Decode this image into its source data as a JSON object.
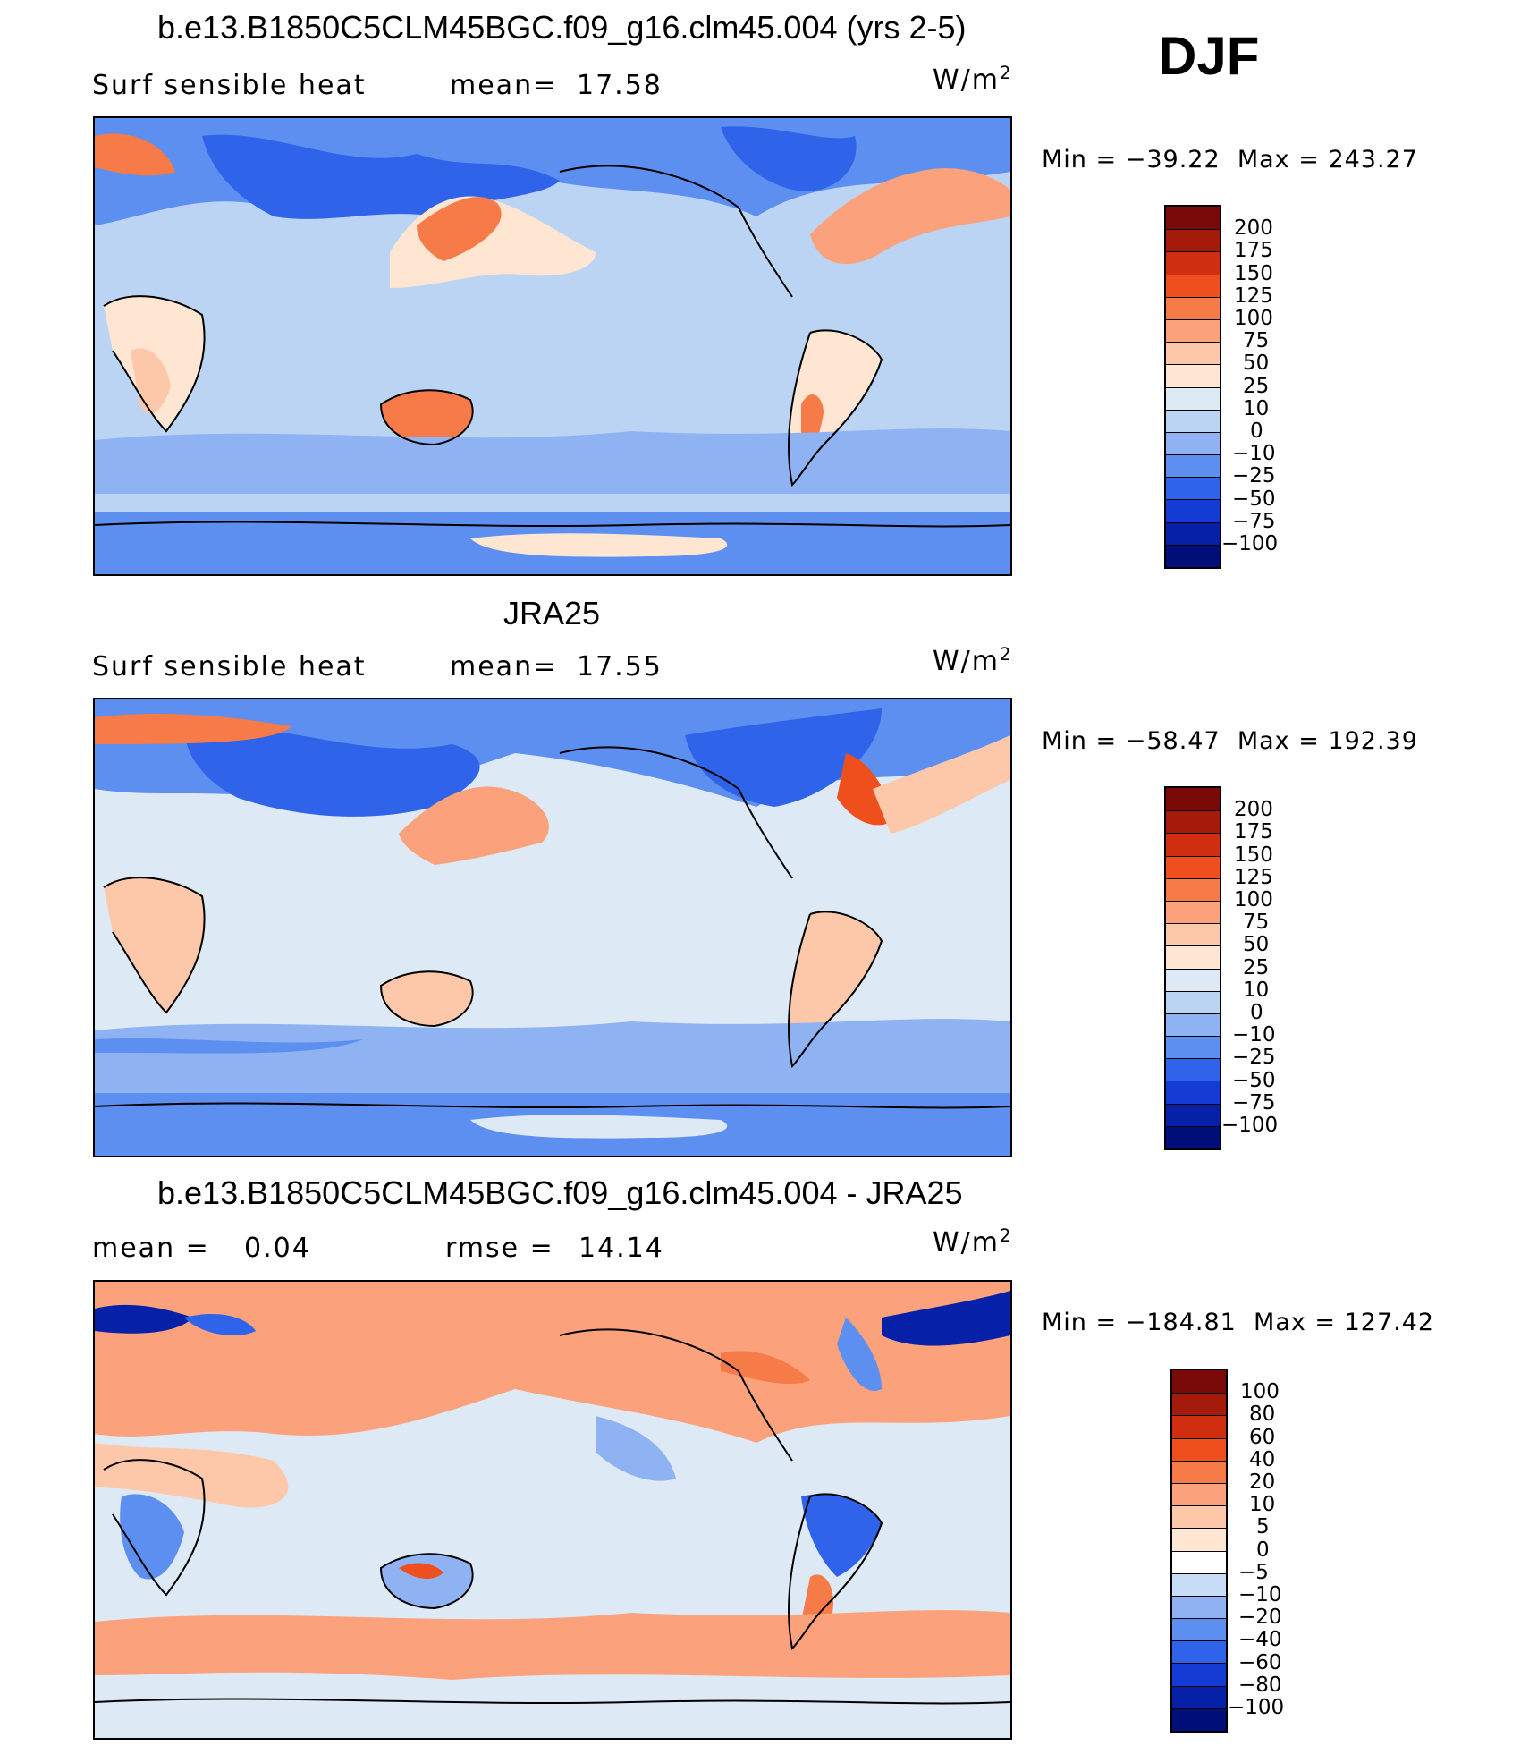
{
  "season": "DJF",
  "chart_data": [
    {
      "type": "heatmap",
      "title": "b.e13.B1850C5CLM45BGC.f09_g16.clm45.004 (yrs 2-5)",
      "variable": "Surf sensible heat",
      "stat_left_label": "mean=",
      "stat_left_value": "17.58",
      "stat_right_label": "",
      "stat_right_value": "",
      "units": "W/m",
      "units_exp": "2",
      "min_label": "Min",
      "min": "−39.22",
      "max_label": "Max",
      "max": "243.27",
      "colorbar_levels": [
        "200",
        "175",
        "150",
        "125",
        "100",
        "75",
        "50",
        "25",
        "10",
        "0",
        "−10",
        "−25",
        "−50",
        "−75",
        "−100"
      ],
      "colorbar_colors": [
        "#7a0a07",
        "#a51b0b",
        "#cf2e10",
        "#ef4e1d",
        "#f77a49",
        "#fba27c",
        "#fdc8a9",
        "#fee6d3",
        "#dde9f5",
        "#bcd4f3",
        "#8fb2f2",
        "#5c8ff0",
        "#2f63ea",
        "#143cd5",
        "#0621a8",
        "#000e7a"
      ]
    },
    {
      "type": "heatmap",
      "title": "JRA25",
      "variable": "Surf sensible heat",
      "stat_left_label": "mean=",
      "stat_left_value": "17.55",
      "stat_right_label": "",
      "stat_right_value": "",
      "units": "W/m",
      "units_exp": "2",
      "min_label": "Min",
      "min": "−58.47",
      "max_label": "Max",
      "max": "192.39",
      "colorbar_levels": [
        "200",
        "175",
        "150",
        "125",
        "100",
        "75",
        "50",
        "25",
        "10",
        "0",
        "−10",
        "−25",
        "−50",
        "−75",
        "−100"
      ],
      "colorbar_colors": [
        "#7a0a07",
        "#a51b0b",
        "#cf2e10",
        "#ef4e1d",
        "#f77a49",
        "#fba27c",
        "#fdc8a9",
        "#fee6d3",
        "#dde9f5",
        "#bcd4f3",
        "#8fb2f2",
        "#5c8ff0",
        "#2f63ea",
        "#143cd5",
        "#0621a8",
        "#000e7a"
      ]
    },
    {
      "type": "heatmap",
      "title": "b.e13.B1850C5CLM45BGC.f09_g16.clm45.004 - JRA25",
      "variable": "",
      "stat_left_label": "mean =",
      "stat_left_value": "0.04",
      "stat_right_label": "rmse =",
      "stat_right_value": "14.14",
      "units": "W/m",
      "units_exp": "2",
      "min_label": "Min",
      "min": "−184.81",
      "max_label": "Max",
      "max": "127.42",
      "colorbar_levels": [
        "100",
        "80",
        "60",
        "40",
        "20",
        "10",
        "5",
        "0",
        "−5",
        "−10",
        "−20",
        "−40",
        "−60",
        "−80",
        "−100"
      ],
      "colorbar_colors": [
        "#7a0a07",
        "#a51b0b",
        "#cf2e10",
        "#ef4e1d",
        "#f77a49",
        "#fba27c",
        "#fdc8a9",
        "#fee6d3",
        "#ffffff",
        "#c6dcf7",
        "#8fb2f2",
        "#5c8ff0",
        "#2f63ea",
        "#143cd5",
        "#0621a8",
        "#000e7a"
      ]
    }
  ]
}
